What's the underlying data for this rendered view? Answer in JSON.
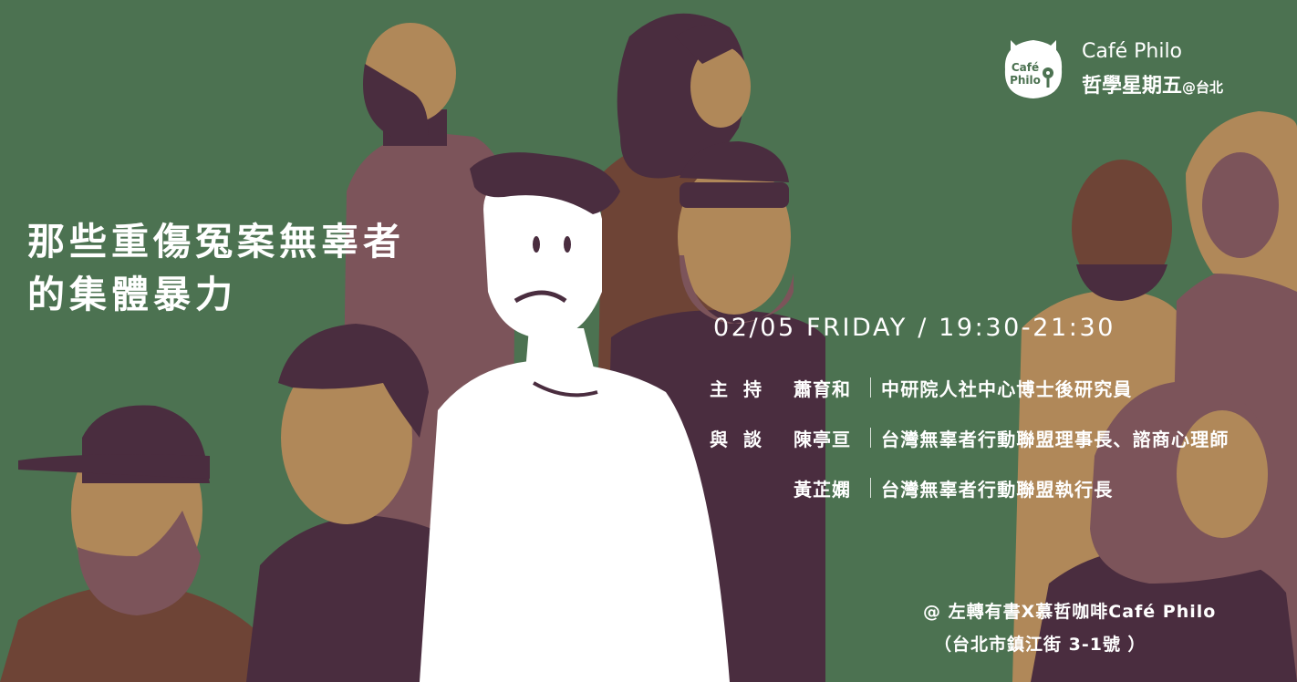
{
  "brand": {
    "logo_line1": "Café",
    "logo_line2": "Philo",
    "name_en": "Café Philo",
    "name_zh": "哲學星期五",
    "location_suffix": "@台北"
  },
  "event": {
    "title_line1": "那些重傷冤案無辜者",
    "title_line2": "的集體暴力",
    "datetime": "02/05 FRIDAY / 19:30-21:30"
  },
  "people": [
    {
      "role": "主持",
      "name": "蕭育和",
      "title": "中研院人社中心博士後研究員"
    },
    {
      "role": "與談",
      "name": "陳亭亘",
      "title": "台灣無辜者行動聯盟理事長、諮商心理師"
    },
    {
      "role": "",
      "name": "黃芷嫻",
      "title": "台灣無辜者行動聯盟執行長"
    }
  ],
  "venue": {
    "line1": "@ 左轉有書X慕哲咖啡Café Philo",
    "line2": "（台北市鎮江街 3-1號 ）"
  },
  "colors": {
    "background": "#4c7251",
    "plum": "#4a2d3f",
    "mauve": "#7c545a",
    "tan": "#b08859",
    "brown": "#6e4436",
    "white": "#ffffff"
  }
}
